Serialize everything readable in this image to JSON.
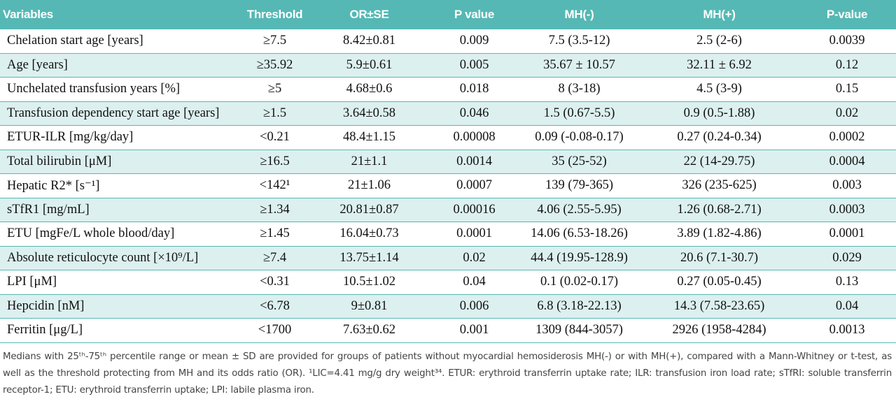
{
  "table": {
    "header": [
      "Variables",
      "Threshold",
      "OR±SE",
      "P value",
      "MH(-)",
      "MH(+)",
      "P-value"
    ],
    "rows": [
      [
        "Chelation start age [years]",
        "≥7.5",
        "8.42±0.81",
        "0.009",
        "7.5 (3.5-12)",
        "2.5 (2-6)",
        "0.0039"
      ],
      [
        "Age [years]",
        "≥35.92",
        "5.9±0.61",
        "0.005",
        "35.67 ± 10.57",
        "32.11 ± 6.92",
        "0.12"
      ],
      [
        "Unchelated transfusion years [%]",
        "≥5",
        "4.68±0.6",
        "0.018",
        "8 (3-18)",
        "4.5 (3-9)",
        "0.15"
      ],
      [
        "Transfusion dependency start age [years]",
        "≥1.5",
        "3.64±0.58",
        "0.046",
        "1.5 (0.67-5.5)",
        "0.9 (0.5-1.88)",
        "0.02"
      ],
      [
        "ETUR-ILR [mg/kg/day]",
        "<0.21",
        "48.4±1.15",
        "0.00008",
        "0.09 (-0.08-0.17)",
        "0.27 (0.24-0.34)",
        "0.0002"
      ],
      [
        "Total bilirubin [μM]",
        "≥16.5",
        "21±1.1",
        "0.0014",
        "35 (25-52)",
        "22 (14-29.75)",
        "0.0004"
      ],
      [
        "Hepatic R2* [s⁻¹]",
        "<142¹",
        "21±1.06",
        "0.0007",
        "139 (79-365)",
        "326 (235-625)",
        "0.003"
      ],
      [
        "sTfR1 [mg/mL]",
        "≥1.34",
        "20.81±0.87",
        "0.00016",
        "4.06 (2.55-5.95)",
        "1.26 (0.68-2.71)",
        "0.0003"
      ],
      [
        "ETU [mgFe/L whole blood/day]",
        "≥1.45",
        "16.04±0.73",
        "0.0001",
        "14.06 (6.53-18.26)",
        "3.89 (1.82-4.86)",
        "0.0001"
      ],
      [
        "Absolute reticulocyte count  [×10⁹/L]",
        "≥7.4",
        "13.75±1.14",
        "0.02",
        "44.4 (19.95-128.9)",
        "20.6 (7.1-30.7)",
        "0.029"
      ],
      [
        "LPI [μM]",
        "<0.31",
        "10.5±1.02",
        "0.04",
        "0.1 (0.02-0.17)",
        "0.27 (0.05-0.45)",
        "0.13"
      ],
      [
        "Hepcidin [nM]",
        "<6.78",
        "9±0.81",
        "0.006",
        "6.8 (3.18-22.13)",
        "14.3 (7.58-23.65)",
        "0.04"
      ],
      [
        "Ferritin [μg/L]",
        "<1700",
        "7.63±0.62",
        "0.001",
        "1309 (844-3057)",
        "2926 (1958-4284)",
        "0.0013"
      ]
    ],
    "footnote": "Medians with 25ᵗʰ-75ᵗʰ percentile range or mean ± SD are provided for groups of patients without myocardial hemosiderosis MH(-) or with MH(+), compared with a Mann-Whitney or t-test, as well as the threshold protecting from MH and its odds ratio (OR). ¹LIC=4.41 mg/g dry weight³⁴. ETUR: erythroid transferrin uptake rate; ILR: transfusion iron load rate; sTfRI: soluble transferrin receptor-1; ETU: erythroid transferrin uptake; LPI: labile plasma iron."
  }
}
